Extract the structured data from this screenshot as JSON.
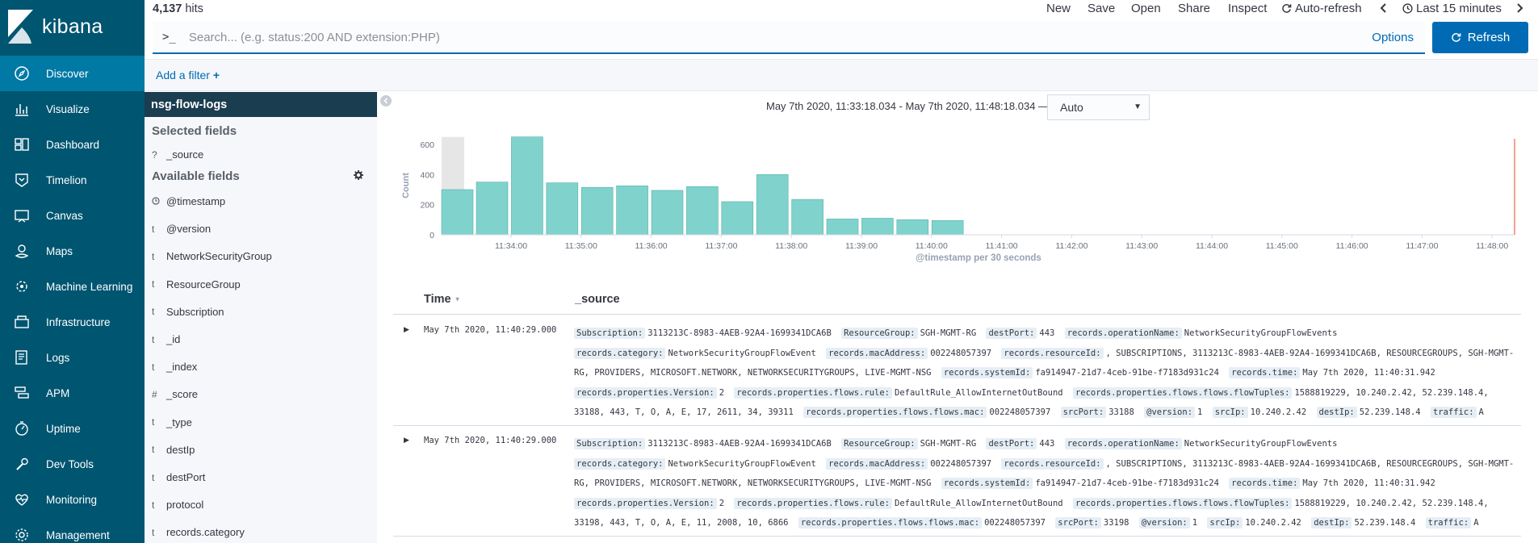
{
  "brand": {
    "name": "kibana"
  },
  "nav": {
    "items": [
      {
        "label": "Discover",
        "icon": "compass-icon",
        "active": true
      },
      {
        "label": "Visualize",
        "icon": "visualize-icon"
      },
      {
        "label": "Dashboard",
        "icon": "dashboard-icon"
      },
      {
        "label": "Timelion",
        "icon": "timelion-icon"
      },
      {
        "label": "Canvas",
        "icon": "canvas-icon"
      },
      {
        "label": "Maps",
        "icon": "maps-icon"
      },
      {
        "label": "Machine Learning",
        "icon": "machine-learning-icon"
      },
      {
        "label": "Infrastructure",
        "icon": "infrastructure-icon"
      },
      {
        "label": "Logs",
        "icon": "logs-icon"
      },
      {
        "label": "APM",
        "icon": "apm-icon"
      },
      {
        "label": "Uptime",
        "icon": "uptime-icon"
      },
      {
        "label": "Dev Tools",
        "icon": "wrench-icon"
      },
      {
        "label": "Monitoring",
        "icon": "heartbeat-icon"
      },
      {
        "label": "Management",
        "icon": "gear-icon"
      }
    ]
  },
  "top": {
    "hits_count": "4,137",
    "hits_label": "hits",
    "menu": {
      "new": "New",
      "save": "Save",
      "open": "Open",
      "share": "Share",
      "inspect": "Inspect",
      "auto_refresh": "Auto-refresh",
      "time_range": "Last 15 minutes"
    },
    "search": {
      "prompt": ">_",
      "placeholder": "Search... (e.g. status:200 AND extension:PHP)",
      "value": "",
      "options": "Options"
    },
    "refresh": "Refresh",
    "add_filter": "Add a filter"
  },
  "fields": {
    "index_pattern": "nsg-flow-logs",
    "selected_title": "Selected fields",
    "selected": [
      {
        "type": "?",
        "name": "_source"
      }
    ],
    "available_title": "Available fields",
    "available": [
      {
        "type": "clock",
        "name": "@timestamp"
      },
      {
        "type": "t",
        "name": "@version"
      },
      {
        "type": "t",
        "name": "NetworkSecurityGroup"
      },
      {
        "type": "t",
        "name": "ResourceGroup"
      },
      {
        "type": "t",
        "name": "Subscription"
      },
      {
        "type": "t",
        "name": "_id"
      },
      {
        "type": "t",
        "name": "_index"
      },
      {
        "type": "#",
        "name": "_score"
      },
      {
        "type": "t",
        "name": "_type"
      },
      {
        "type": "t",
        "name": "destIp"
      },
      {
        "type": "t",
        "name": "destPort"
      },
      {
        "type": "t",
        "name": "protocol"
      },
      {
        "type": "t",
        "name": "records.category"
      }
    ]
  },
  "main": {
    "time_range_text": "May 7th 2020, 11:33:18.034 - May 7th 2020, 11:48:18.034 —",
    "interval": "Auto",
    "table": {
      "col_time": "Time",
      "col_source": "_source",
      "rows": [
        {
          "time": "May 7th 2020, 11:40:29.000",
          "fields": [
            {
              "k": "Subscription:",
              "v": "3113213C-8983-4AEB-92A4-1699341DCA6B"
            },
            {
              "k": "ResourceGroup:",
              "v": "SGH-MGMT-RG"
            },
            {
              "k": "destPort:",
              "v": "443"
            },
            {
              "k": "records.operationName:",
              "v": "NetworkSecurityGroupFlowEvents"
            },
            {
              "k": "records.category:",
              "v": "NetworkSecurityGroupFlowEvent"
            },
            {
              "k": "records.macAddress:",
              "v": "002248057397"
            },
            {
              "k": "records.resourceId:",
              "v": ", SUBSCRIPTIONS, 3113213C-8983-4AEB-92A4-1699341DCA6B, RESOURCEGROUPS, SGH-MGMT-RG, PROVIDERS, MICROSOFT.NETWORK, NETWORKSECURITYGROUPS, LIVE-MGMT-NSG"
            },
            {
              "k": "records.systemId:",
              "v": "fa914947-21d7-4ceb-91be-f7183d931c24"
            },
            {
              "k": "records.time:",
              "v": "May 7th 2020, 11:40:31.942"
            },
            {
              "k": "records.properties.Version:",
              "v": "2"
            },
            {
              "k": "records.properties.flows.rule:",
              "v": "DefaultRule_AllowInternetOutBound"
            },
            {
              "k": "records.properties.flows.flows.flowTuples:",
              "v": "1588819229, 10.240.2.42, 52.239.148.4, 33188, 443, T, O, A, E, 17, 2611, 34, 39311"
            },
            {
              "k": "records.properties.flows.flows.mac:",
              "v": "002248057397"
            },
            {
              "k": "srcPort:",
              "v": "33188"
            },
            {
              "k": "@version:",
              "v": "1"
            },
            {
              "k": "srcIp:",
              "v": "10.240.2.42"
            },
            {
              "k": "destIp:",
              "v": "52.239.148.4"
            },
            {
              "k": "traffic:",
              "v": "A"
            }
          ]
        },
        {
          "time": "May 7th 2020, 11:40:29.000",
          "fields": [
            {
              "k": "Subscription:",
              "v": "3113213C-8983-4AEB-92A4-1699341DCA6B"
            },
            {
              "k": "ResourceGroup:",
              "v": "SGH-MGMT-RG"
            },
            {
              "k": "destPort:",
              "v": "443"
            },
            {
              "k": "records.operationName:",
              "v": "NetworkSecurityGroupFlowEvents"
            },
            {
              "k": "records.category:",
              "v": "NetworkSecurityGroupFlowEvent"
            },
            {
              "k": "records.macAddress:",
              "v": "002248057397"
            },
            {
              "k": "records.resourceId:",
              "v": ", SUBSCRIPTIONS, 3113213C-8983-4AEB-92A4-1699341DCA6B, RESOURCEGROUPS, SGH-MGMT-RG, PROVIDERS, MICROSOFT.NETWORK, NETWORKSECURITYGROUPS, LIVE-MGMT-NSG"
            },
            {
              "k": "records.systemId:",
              "v": "fa914947-21d7-4ceb-91be-f7183d931c24"
            },
            {
              "k": "records.time:",
              "v": "May 7th 2020, 11:40:31.942"
            },
            {
              "k": "records.properties.Version:",
              "v": "2"
            },
            {
              "k": "records.properties.flows.rule:",
              "v": "DefaultRule_AllowInternetOutBound"
            },
            {
              "k": "records.properties.flows.flows.flowTuples:",
              "v": "1588819229, 10.240.2.42, 52.239.148.4, 33198, 443, T, O, A, E, 11, 2008, 10, 6866"
            },
            {
              "k": "records.properties.flows.flows.mac:",
              "v": "002248057397"
            },
            {
              "k": "srcPort:",
              "v": "33198"
            },
            {
              "k": "@version:",
              "v": "1"
            },
            {
              "k": "srcIp:",
              "v": "10.240.2.42"
            },
            {
              "k": "destIp:",
              "v": "52.239.148.4"
            },
            {
              "k": "traffic:",
              "v": "A"
            }
          ]
        }
      ]
    }
  },
  "chart_data": {
    "type": "bar",
    "ylabel": "Count",
    "xlabel": "@timestamp per 30 seconds",
    "ylim": [
      0,
      700
    ],
    "yticks": [
      0,
      200,
      400,
      600
    ],
    "xticks": [
      "11:34:00",
      "11:35:00",
      "11:36:00",
      "11:37:00",
      "11:38:00",
      "11:39:00",
      "11:40:00",
      "11:41:00",
      "11:42:00",
      "11:43:00",
      "11:44:00",
      "11:45:00",
      "11:46:00",
      "11:47:00",
      "11:48:00"
    ],
    "categories": [
      "11:33:18",
      "11:33:30",
      "11:34:00",
      "11:34:30",
      "11:35:00",
      "11:35:30",
      "11:36:00",
      "11:36:30",
      "11:37:00",
      "11:37:30",
      "11:38:00",
      "11:38:30",
      "11:39:00",
      "11:39:30",
      "11:40:00",
      "11:40:30"
    ],
    "values": [
      300,
      350,
      650,
      345,
      315,
      325,
      295,
      320,
      220,
      400,
      235,
      105,
      110,
      100,
      95,
      0
    ],
    "bar_color": "#80d2cc",
    "partial_bucket_color": "#e6e6e6",
    "now_marker_color": "#e7664c"
  }
}
